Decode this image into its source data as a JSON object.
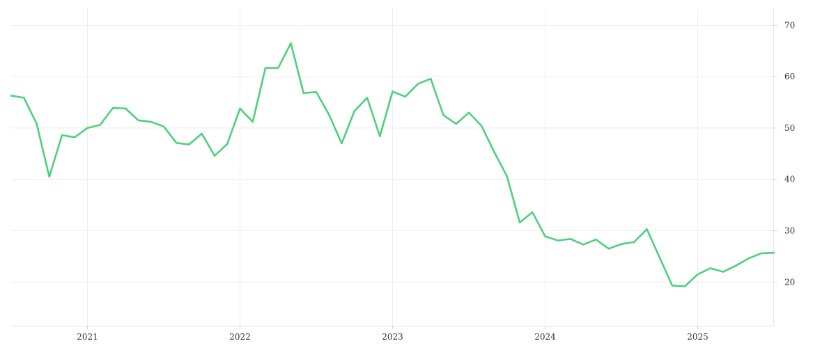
{
  "chart_data": {
    "type": "line",
    "x_tick_labels": [
      "2021",
      "2022",
      "2023",
      "2024",
      "2025"
    ],
    "y_tick_labels": [
      "20",
      "30",
      "40",
      "50",
      "60",
      "70"
    ],
    "y_ticks": [
      20,
      30,
      40,
      50,
      60,
      70
    ],
    "ylim": [
      11.5,
      73.3
    ],
    "x_start": "2020-07",
    "grid": true,
    "y_axis_position": "right",
    "legend": "none",
    "series": [
      {
        "color": "#4cd17a",
        "points": [
          [
            "2020-07",
            56.3
          ],
          [
            "2020-08",
            55.9
          ],
          [
            "2020-09",
            50.9
          ],
          [
            "2020-10",
            40.5
          ],
          [
            "2020-11",
            48.6
          ],
          [
            "2020-12",
            48.2
          ],
          [
            "2021-01",
            50.0
          ],
          [
            "2021-02",
            50.6
          ],
          [
            "2021-03",
            53.9
          ],
          [
            "2021-04",
            53.8
          ],
          [
            "2021-05",
            51.5
          ],
          [
            "2021-06",
            51.2
          ],
          [
            "2021-07",
            50.3
          ],
          [
            "2021-08",
            47.1
          ],
          [
            "2021-09",
            46.8
          ],
          [
            "2021-10",
            48.9
          ],
          [
            "2021-11",
            44.6
          ],
          [
            "2021-12",
            46.9
          ],
          [
            "2022-01",
            53.8
          ],
          [
            "2022-02",
            51.2
          ],
          [
            "2022-03",
            61.7
          ],
          [
            "2022-04",
            61.7
          ],
          [
            "2022-05",
            66.5
          ],
          [
            "2022-06",
            56.8
          ],
          [
            "2022-07",
            57.0
          ],
          [
            "2022-08",
            52.6
          ],
          [
            "2022-09",
            47.0
          ],
          [
            "2022-10",
            53.3
          ],
          [
            "2022-11",
            55.9
          ],
          [
            "2022-12",
            48.4
          ],
          [
            "2023-01",
            57.1
          ],
          [
            "2023-02",
            56.1
          ],
          [
            "2023-03",
            58.6
          ],
          [
            "2023-04",
            59.6
          ],
          [
            "2023-05",
            52.5
          ],
          [
            "2023-06",
            50.8
          ],
          [
            "2023-07",
            53.0
          ],
          [
            "2023-08",
            50.4
          ],
          [
            "2023-09",
            45.3
          ],
          [
            "2023-10",
            40.6
          ],
          [
            "2023-11",
            31.6
          ],
          [
            "2023-12",
            33.6
          ],
          [
            "2024-01",
            28.9
          ],
          [
            "2024-02",
            28.1
          ],
          [
            "2024-03",
            28.4
          ],
          [
            "2024-04",
            27.3
          ],
          [
            "2024-05",
            28.3
          ],
          [
            "2024-06",
            26.5
          ],
          [
            "2024-07",
            27.4
          ],
          [
            "2024-08",
            27.8
          ],
          [
            "2024-09",
            30.3
          ],
          [
            "2024-10",
            24.8
          ],
          [
            "2024-11",
            19.3
          ],
          [
            "2024-12",
            19.2
          ],
          [
            "2025-01",
            21.5
          ],
          [
            "2025-02",
            22.7
          ],
          [
            "2025-03",
            22.0
          ],
          [
            "2025-04",
            23.2
          ],
          [
            "2025-05",
            24.6
          ],
          [
            "2025-06",
            25.6
          ],
          [
            "2025-07",
            25.7
          ]
        ]
      }
    ]
  }
}
